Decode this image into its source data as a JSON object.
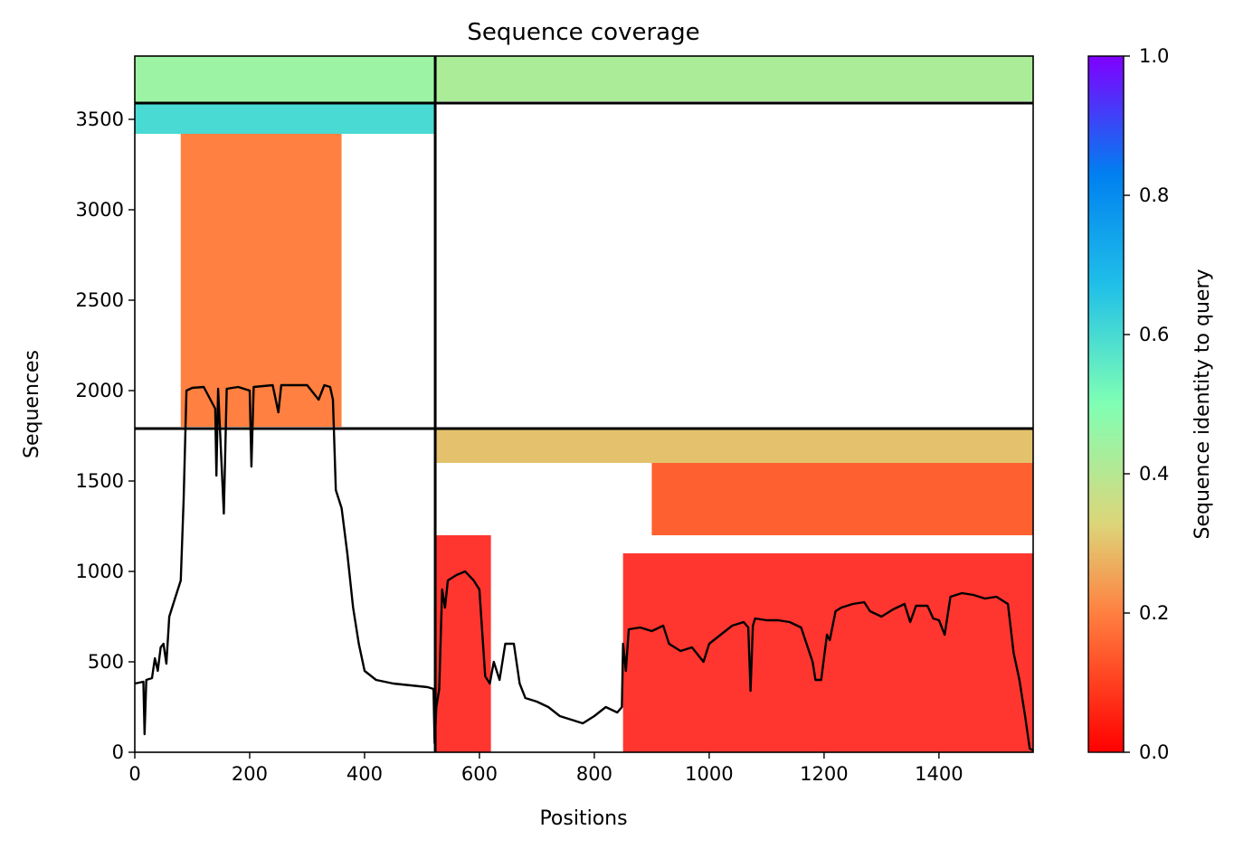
{
  "chart_data": {
    "type": "heatmap",
    "title": "Sequence coverage",
    "xlabel": "Positions",
    "ylabel": "Sequences",
    "xlim": [
      0,
      1564
    ],
    "ylim": [
      0,
      3850
    ],
    "x_ticks": [
      0,
      200,
      400,
      600,
      800,
      1000,
      1200,
      1400
    ],
    "y_ticks": [
      0,
      500,
      1000,
      1500,
      2000,
      2500,
      3000,
      3500
    ],
    "colorbar": {
      "label": "Sequence identity to query",
      "range": [
        0.0,
        1.0
      ],
      "ticks": [
        "0.0",
        "0.2",
        "0.4",
        "0.6",
        "0.8",
        "1.0"
      ],
      "colormap": "rainbow_r",
      "colors": [
        "#ff0000",
        "#ff8040",
        "#dcd67a",
        "#80ffb4",
        "#20c0e8",
        "#0080f0",
        "#8000ff"
      ]
    },
    "chain_boundary_x": [
      523
    ],
    "block_boundary_y": [
      1790,
      3590
    ],
    "coverage_blocks": [
      {
        "x": [
          0,
          523
        ],
        "y": [
          3590,
          3850
        ],
        "identity": 0.45
      },
      {
        "x": [
          0,
          523
        ],
        "y": [
          3420,
          3590
        ],
        "identity": 0.6
      },
      {
        "x": [
          80,
          360
        ],
        "y": [
          1800,
          3420
        ],
        "identity": 0.2
      },
      {
        "x": [
          523,
          1564
        ],
        "y": [
          3600,
          3850
        ],
        "identity": 0.42
      },
      {
        "x": [
          523,
          1564
        ],
        "y": [
          1600,
          1790
        ],
        "identity": 0.3
      },
      {
        "x": [
          900,
          1564
        ],
        "y": [
          1200,
          1600
        ],
        "identity": 0.15
      },
      {
        "x": [
          523,
          620
        ],
        "y": [
          0,
          1200
        ],
        "identity": 0.03
      },
      {
        "x": [
          850,
          1564
        ],
        "y": [
          0,
          1100
        ],
        "identity": 0.03
      }
    ],
    "series": [
      {
        "name": "coverage",
        "color": "#000000",
        "points": [
          [
            0,
            380
          ],
          [
            15,
            390
          ],
          [
            17,
            100
          ],
          [
            20,
            400
          ],
          [
            30,
            410
          ],
          [
            35,
            520
          ],
          [
            40,
            450
          ],
          [
            45,
            580
          ],
          [
            50,
            600
          ],
          [
            55,
            490
          ],
          [
            60,
            750
          ],
          [
            70,
            850
          ],
          [
            80,
            950
          ],
          [
            85,
            1400
          ],
          [
            90,
            2000
          ],
          [
            100,
            2015
          ],
          [
            120,
            2020
          ],
          [
            140,
            1900
          ],
          [
            142,
            1530
          ],
          [
            145,
            2010
          ],
          [
            155,
            1320
          ],
          [
            160,
            2010
          ],
          [
            180,
            2020
          ],
          [
            200,
            2000
          ],
          [
            203,
            1580
          ],
          [
            207,
            2020
          ],
          [
            240,
            2030
          ],
          [
            250,
            1880
          ],
          [
            255,
            2030
          ],
          [
            300,
            2030
          ],
          [
            320,
            1950
          ],
          [
            330,
            2030
          ],
          [
            340,
            2020
          ],
          [
            345,
            1950
          ],
          [
            350,
            1450
          ],
          [
            360,
            1350
          ],
          [
            370,
            1100
          ],
          [
            380,
            800
          ],
          [
            390,
            600
          ],
          [
            400,
            450
          ],
          [
            420,
            400
          ],
          [
            450,
            380
          ],
          [
            480,
            370
          ],
          [
            510,
            360
          ],
          [
            520,
            350
          ],
          [
            522,
            50
          ],
          [
            525,
            250
          ],
          [
            530,
            350
          ],
          [
            535,
            900
          ],
          [
            540,
            800
          ],
          [
            545,
            950
          ],
          [
            560,
            980
          ],
          [
            575,
            1000
          ],
          [
            590,
            950
          ],
          [
            600,
            900
          ],
          [
            610,
            420
          ],
          [
            618,
            380
          ],
          [
            625,
            500
          ],
          [
            635,
            400
          ],
          [
            645,
            600
          ],
          [
            660,
            600
          ],
          [
            670,
            380
          ],
          [
            680,
            300
          ],
          [
            700,
            280
          ],
          [
            720,
            250
          ],
          [
            740,
            200
          ],
          [
            760,
            180
          ],
          [
            780,
            160
          ],
          [
            800,
            200
          ],
          [
            820,
            250
          ],
          [
            840,
            220
          ],
          [
            848,
            250
          ],
          [
            850,
            600
          ],
          [
            855,
            450
          ],
          [
            860,
            680
          ],
          [
            880,
            690
          ],
          [
            900,
            670
          ],
          [
            920,
            700
          ],
          [
            930,
            600
          ],
          [
            950,
            560
          ],
          [
            970,
            580
          ],
          [
            990,
            500
          ],
          [
            1000,
            600
          ],
          [
            1020,
            650
          ],
          [
            1040,
            700
          ],
          [
            1060,
            720
          ],
          [
            1068,
            690
          ],
          [
            1072,
            340
          ],
          [
            1076,
            700
          ],
          [
            1080,
            740
          ],
          [
            1100,
            730
          ],
          [
            1120,
            730
          ],
          [
            1140,
            720
          ],
          [
            1160,
            690
          ],
          [
            1180,
            500
          ],
          [
            1185,
            400
          ],
          [
            1195,
            400
          ],
          [
            1205,
            650
          ],
          [
            1210,
            620
          ],
          [
            1220,
            780
          ],
          [
            1230,
            800
          ],
          [
            1250,
            820
          ],
          [
            1270,
            830
          ],
          [
            1280,
            780
          ],
          [
            1300,
            750
          ],
          [
            1320,
            790
          ],
          [
            1340,
            820
          ],
          [
            1350,
            720
          ],
          [
            1360,
            810
          ],
          [
            1380,
            810
          ],
          [
            1390,
            740
          ],
          [
            1400,
            730
          ],
          [
            1410,
            650
          ],
          [
            1420,
            860
          ],
          [
            1440,
            880
          ],
          [
            1460,
            870
          ],
          [
            1480,
            850
          ],
          [
            1500,
            860
          ],
          [
            1520,
            820
          ],
          [
            1530,
            550
          ],
          [
            1540,
            400
          ],
          [
            1550,
            200
          ],
          [
            1558,
            20
          ],
          [
            1564,
            10
          ]
        ]
      }
    ]
  }
}
